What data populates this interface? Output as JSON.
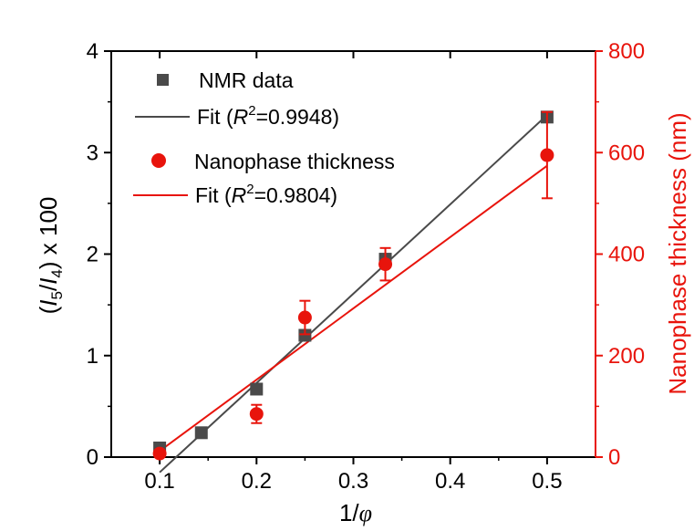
{
  "chart_data": {
    "type": "scatter",
    "xlabel": "1/φ",
    "ylabel": "(I5/I4) x 100",
    "ylabel_right": "Nanophase thickness (nm)",
    "xlim": [
      0.05,
      0.55
    ],
    "ylim": [
      0,
      4
    ],
    "ylim_right": [
      0,
      800
    ],
    "x_ticks": [
      0.1,
      0.2,
      0.3,
      0.4,
      0.5
    ],
    "x_tick_labels": [
      "0.1",
      "0.2",
      "0.3",
      "0.4",
      "0.5"
    ],
    "y_ticks": [
      0,
      1,
      2,
      3,
      4
    ],
    "y_tick_labels": [
      "0",
      "1",
      "2",
      "3",
      "4"
    ],
    "y_right_ticks": [
      0,
      200,
      400,
      600,
      800
    ],
    "y_right_tick_labels": [
      "0",
      "200",
      "400",
      "600",
      "800"
    ],
    "grid": false,
    "legend_position": "top-left",
    "colors": {
      "nmr": "#4a4a4a",
      "nmr_fit": "#4a4a4a",
      "thickness": "#e8140c",
      "thickness_fit": "#e8140c",
      "right_axis": "#e8140c"
    },
    "series": [
      {
        "name": "NMR data",
        "kind": "scatter",
        "marker": "square",
        "axis": "left",
        "x": [
          0.1,
          0.143,
          0.2,
          0.25,
          0.333,
          0.5
        ],
        "y": [
          0.09,
          0.24,
          0.67,
          1.2,
          1.95,
          3.35
        ]
      },
      {
        "name": "Fit (R2=0.9948)",
        "kind": "line",
        "axis": "left",
        "x": [
          0.1,
          0.5
        ],
        "y": [
          -0.15,
          3.37
        ]
      },
      {
        "name": "Nanophase thickness",
        "kind": "scatter",
        "marker": "circle",
        "axis": "right",
        "x": [
          0.1,
          0.2,
          0.25,
          0.333,
          0.5
        ],
        "y": [
          7,
          85,
          275,
          380,
          595
        ],
        "yerr": [
          5,
          18,
          33,
          32,
          85
        ]
      },
      {
        "name": "Fit (R2=0.9804)",
        "kind": "line",
        "axis": "right",
        "x": [
          0.1,
          0.5
        ],
        "y": [
          12,
          574
        ]
      }
    ],
    "legend": [
      {
        "label": "NMR data"
      },
      {
        "label_prefix": "Fit (",
        "label_r": "R",
        "label_sup": "2",
        "label_suffix": "=0.9948)"
      },
      {
        "label": "Nanophase thickness"
      },
      {
        "label_prefix": "Fit (",
        "label_r": "R",
        "label_sup": "2",
        "label_suffix": "=0.9804)"
      }
    ],
    "ylabel_parts": {
      "open": "(",
      "i5": "I",
      "sub5": "5",
      "slash": "/",
      "i4": "I",
      "sub4": "4",
      "rest": ") x 100"
    },
    "xlabel_parts": {
      "one": "1/",
      "phi": "φ"
    }
  }
}
